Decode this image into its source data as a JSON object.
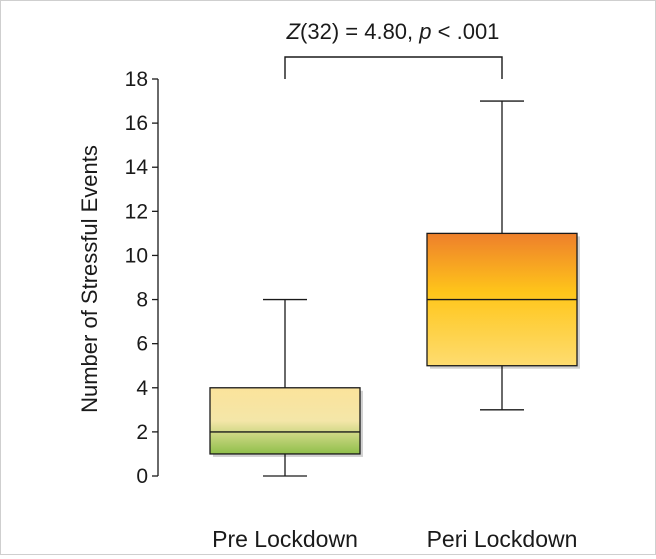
{
  "chart_data": {
    "type": "box",
    "annotation": {
      "stat_symbol": "Z",
      "stat_rest": "(32) = 4.80, ",
      "p_symbol": "p",
      "p_rest": " < .001"
    },
    "ylabel": "Number of Stressful Events",
    "xlabel": "",
    "ylim": [
      0,
      18
    ],
    "yticks": [
      0,
      2,
      4,
      6,
      8,
      10,
      12,
      14,
      16,
      18
    ],
    "grid": false,
    "categories": [
      "Pre Lockdown",
      "Peri Lockdown"
    ],
    "boxes": [
      {
        "category": "Pre Lockdown",
        "min": 0,
        "q1": 1,
        "median": 2,
        "q3": 4,
        "max": 8
      },
      {
        "category": "Peri Lockdown",
        "min": 3,
        "q1": 5,
        "median": 8,
        "q3": 11,
        "max": 17
      }
    ],
    "colors": {
      "pre_top": "#fbe39b",
      "pre_mid": "#f4e6a8",
      "pre_bottom": "#8fbf4a",
      "peri_top": "#ee7f2b",
      "peri_mid": "#ffc61a",
      "peri_bottom": "#fedc70"
    }
  }
}
